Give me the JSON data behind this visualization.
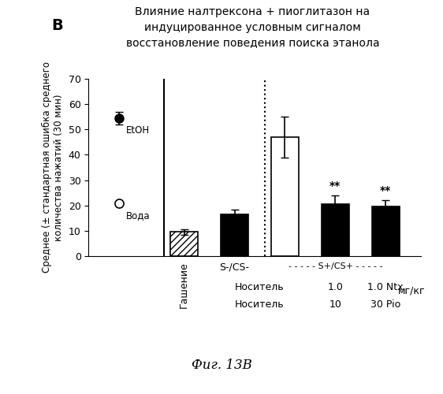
{
  "title_line1": "Влияние налтрексона + пиоглитазон на",
  "title_line2": "индуцированное условным сигналом",
  "title_line3": "восстановление поведения поиска этанола",
  "panel_label": "B",
  "ylabel": "Среднее (± стандартная ошибка среднего\nколичества нажатий (30 мин)",
  "ylim": [
    0,
    70
  ],
  "yticks": [
    0,
    10,
    20,
    30,
    40,
    50,
    60,
    70
  ],
  "fig_caption": "Фиг. 13В",
  "etoh_value": 54.5,
  "etoh_err": 2.5,
  "water_value": 21.0,
  "bar_positions": [
    2,
    3,
    4,
    5,
    6
  ],
  "bar_values": [
    9.5,
    16.5,
    47.0,
    20.5,
    19.5
  ],
  "bar_errors": [
    1.2,
    2.0,
    8.0,
    3.5,
    2.5
  ],
  "bar_colors": [
    "hatched",
    "black",
    "white",
    "black",
    "black"
  ],
  "significance": [
    false,
    false,
    false,
    true,
    true
  ],
  "xlabel_groups": {
    "extinction_label": "Гашение",
    "sminus_label": "S-/CS-",
    "splus_label": "S+/CS+",
    "row1_label": "Носитель",
    "row1_val1": "1.0",
    "row1_val2": "1.0 Ntx",
    "row2_label": "Носитель",
    "row2_val1": "10",
    "row2_val2": "30 Pio",
    "units_label": "мг/кг"
  },
  "etoh_label": "EtOH",
  "water_label": "Вода",
  "background_color": "#ffffff",
  "hatch_pattern": "////"
}
